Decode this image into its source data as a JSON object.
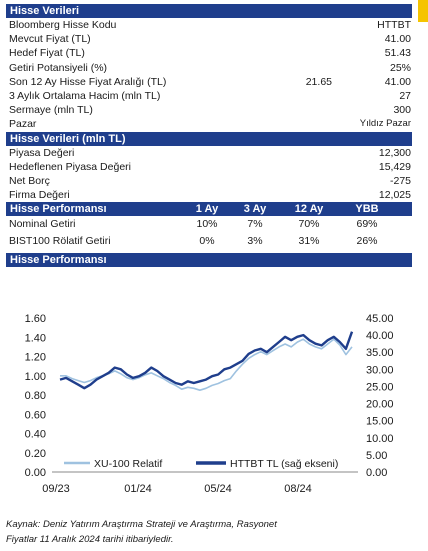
{
  "stock_data": {
    "header": "Hisse Verileri",
    "rows": [
      {
        "label": "Bloomberg Hisse Kodu",
        "value": "HTTBT"
      },
      {
        "label": "Mevcut Fiyat (TL)",
        "value": "41.00"
      },
      {
        "label": "Hedef Fiyat (TL)",
        "value": "51.43"
      },
      {
        "label": "Getiri Potansiyeli (%)",
        "value": "25%"
      },
      {
        "label": "Son 12 Ay Hisse Fiyat Aralığı (TL)",
        "mid": "21.65",
        "value": "41.00"
      },
      {
        "label": "3 Aylık Ortalama Hacim (mln TL)",
        "value": "27"
      },
      {
        "label": "Sermaye (mln TL)",
        "value": "300"
      },
      {
        "label": "Pazar",
        "value": "Yıldız Pazar"
      }
    ]
  },
  "stock_data_mln": {
    "header": "Hisse Verileri (mln TL)",
    "rows": [
      {
        "label": "Piyasa Değeri",
        "value": "12,300"
      },
      {
        "label": "Hedeflenen Piyasa Değeri",
        "value": "15,429"
      },
      {
        "label": "Net Borç",
        "value": "-275"
      },
      {
        "label": "Firma Değeri",
        "value": "12,025"
      }
    ]
  },
  "performance": {
    "header": "Hisse Performansı",
    "columns": [
      "1 Ay",
      "3 Ay",
      "12 Ay",
      "YBB"
    ],
    "rows": [
      {
        "label": "Nominal Getiri",
        "values": [
          "10%",
          "7%",
          "70%",
          "69%"
        ]
      },
      {
        "label": "BIST100 Rölatif Getiri",
        "values": [
          "0%",
          "3%",
          "31%",
          "26%"
        ]
      }
    ]
  },
  "chart_section": {
    "header": "Hisse Performansı"
  },
  "chart_data": {
    "type": "line",
    "x_ticks": [
      "09/23",
      "01/24",
      "05/24",
      "08/24"
    ],
    "y_left_ticks": [
      "0.00",
      "0.20",
      "0.40",
      "0.60",
      "0.80",
      "1.00",
      "1.20",
      "1.40",
      "1.60"
    ],
    "y_right_ticks": [
      "0.00",
      "5.00",
      "10.00",
      "15.00",
      "20.00",
      "25.00",
      "30.00",
      "35.00",
      "40.00",
      "45.00"
    ],
    "ylim_left": [
      0,
      1.6
    ],
    "ylim_right": [
      0,
      45
    ],
    "series": [
      {
        "name": "XU-100 Relatif",
        "axis": "left",
        "color": "#9fc2e0",
        "values": [
          1.0,
          1.0,
          0.97,
          0.95,
          0.93,
          0.95,
          0.98,
          1.0,
          1.02,
          1.05,
          1.02,
          0.98,
          0.96,
          0.98,
          1.01,
          1.03,
          1.0,
          0.97,
          0.93,
          0.9,
          0.86,
          0.88,
          0.87,
          0.85,
          0.87,
          0.9,
          0.92,
          0.95,
          0.97,
          1.05,
          1.12,
          1.18,
          1.22,
          1.25,
          1.22,
          1.26,
          1.3,
          1.33,
          1.3,
          1.35,
          1.38,
          1.33,
          1.3,
          1.28,
          1.33,
          1.38,
          1.32,
          1.22,
          1.3
        ]
      },
      {
        "name": "HTTBT TL (sağ ekseni)",
        "axis": "right",
        "color": "#1f3e8c",
        "values": [
          27.0,
          27.5,
          26.5,
          25.5,
          24.5,
          25.5,
          27.0,
          28.0,
          29.0,
          30.5,
          30.0,
          28.5,
          27.5,
          28.0,
          29.0,
          30.5,
          29.5,
          28.0,
          27.0,
          26.0,
          25.5,
          26.5,
          26.0,
          26.5,
          27.0,
          28.0,
          28.5,
          30.0,
          30.5,
          31.5,
          32.5,
          34.5,
          35.5,
          36.0,
          35.0,
          36.5,
          38.0,
          39.5,
          38.5,
          39.5,
          40.0,
          38.5,
          37.5,
          37.0,
          38.5,
          39.5,
          38.0,
          36.0,
          41.0
        ]
      }
    ],
    "legend_position": "bottom-center"
  },
  "source_note": {
    "line1": "Kaynak: Deniz Yatırım Araştırma Strateji ve Araştırma, Rasyonet",
    "line2": "Fiyatlar 11 Aralık 2024 tarihi itibariyledir."
  }
}
